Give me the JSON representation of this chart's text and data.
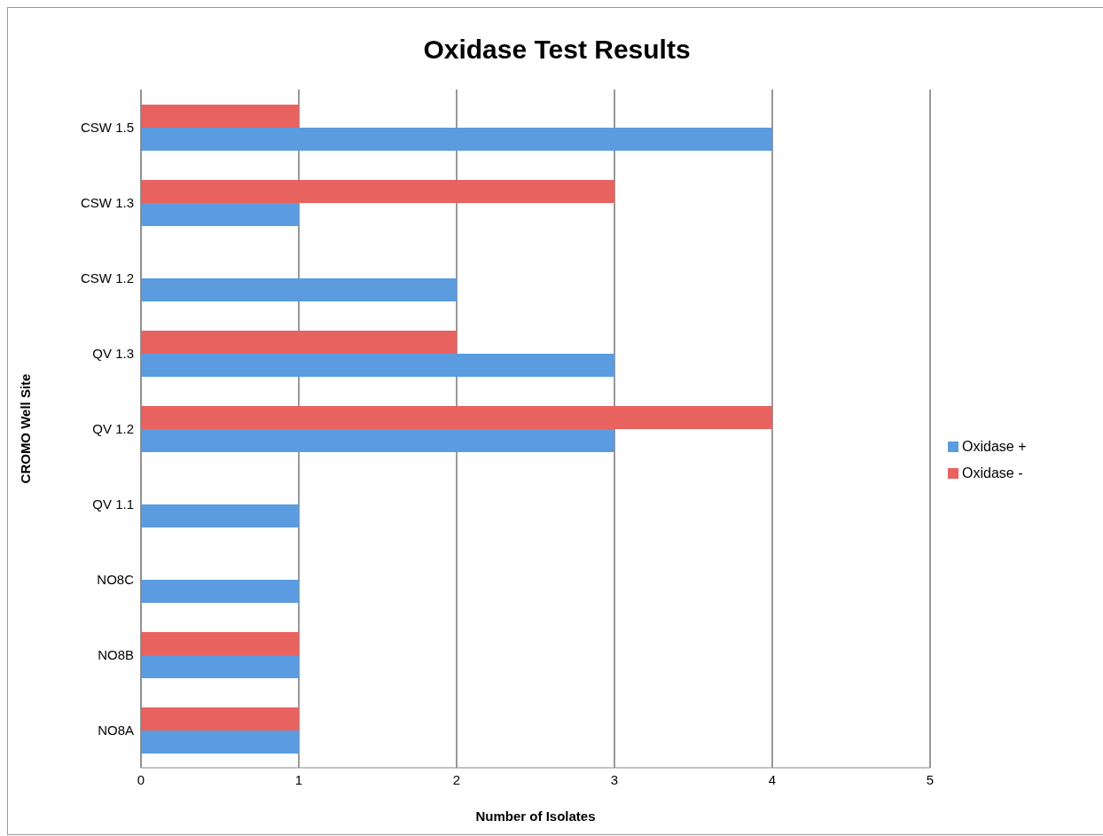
{
  "chart_data": {
    "type": "bar",
    "orientation": "horizontal",
    "title": "Oxidase Test Results",
    "xlabel": "Number of Isolates",
    "ylabel": "CROMO Well Site",
    "categories": [
      "CSW 1.5",
      "CSW 1.3",
      "CSW 1.2",
      "QV 1.3",
      "QV 1.2",
      "QV 1.1",
      "NO8C",
      "NO8B",
      "NO8A"
    ],
    "series": [
      {
        "name": "Oxidase -",
        "color": "#e8625f",
        "values": [
          1,
          3,
          0,
          2,
          4,
          0,
          0,
          1,
          1
        ]
      },
      {
        "name": "Oxidase +",
        "color": "#5b9be0",
        "values": [
          4,
          1,
          2,
          3,
          3,
          1,
          1,
          1,
          1
        ]
      }
    ],
    "xlim": [
      0,
      5
    ],
    "xticks": [
      0,
      1,
      2,
      3,
      4,
      5
    ],
    "grid": "x",
    "legend": "right"
  }
}
